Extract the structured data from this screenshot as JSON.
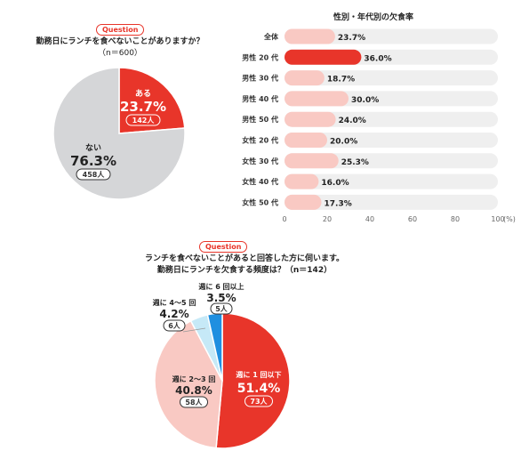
{
  "colors": {
    "accent": "#e8352a",
    "pink": "#f9c9c3",
    "gray": "#d5d6d8",
    "track": "#efefef",
    "light_blue": "#c6e9f7",
    "blue": "#1f8fe0"
  },
  "q1": {
    "badge": "Question",
    "line1": "勤務日にランチを食べないことがありますか？",
    "line2": "（n＝600）"
  },
  "q2": {
    "badge": "Question",
    "line1": "ランチを食べないことがあると回答した方に伺います。",
    "line2": "勤務日にランチを欠食する頻度は？（n＝142）"
  },
  "chart_data": [
    {
      "type": "pie",
      "slices": [
        {
          "label": "ある",
          "value": 23.7,
          "display": "23.7%",
          "count": "142人"
        },
        {
          "label": "ない",
          "value": 76.3,
          "display": "76.3%",
          "count": "458人"
        }
      ]
    },
    {
      "type": "bar",
      "orientation": "horizontal",
      "title": "性別・年代別の欠食率",
      "categories": [
        "全体",
        "男性 20 代",
        "男性 30 代",
        "男性 40 代",
        "男性 50 代",
        "女性 20 代",
        "女性 30 代",
        "女性 40 代",
        "女性 50 代"
      ],
      "values": [
        23.7,
        36.0,
        18.7,
        30.0,
        24.0,
        20.0,
        25.3,
        16.0,
        17.3
      ],
      "value_labels": [
        "23.7%",
        "36.0%",
        "18.7%",
        "30.0%",
        "24.0%",
        "20.0%",
        "25.3%",
        "16.0%",
        "17.3%"
      ],
      "highlight_index": 1,
      "xlim": [
        0,
        100
      ],
      "xticks": [
        "0",
        "20",
        "40",
        "60",
        "80",
        "100"
      ],
      "xunit": "(%)"
    },
    {
      "type": "pie",
      "slices": [
        {
          "label": "週に 1 回以下",
          "value": 51.4,
          "display": "51.4%",
          "count": "73人"
        },
        {
          "label": "週に 2〜3 回",
          "value": 40.8,
          "display": "40.8%",
          "count": "58人"
        },
        {
          "label": "週に 4〜5 回",
          "value": 4.2,
          "display": "4.2%",
          "count": "6人"
        },
        {
          "label": "週に 6 回以上",
          "value": 3.5,
          "display": "3.5%",
          "count": "5人"
        }
      ]
    }
  ]
}
